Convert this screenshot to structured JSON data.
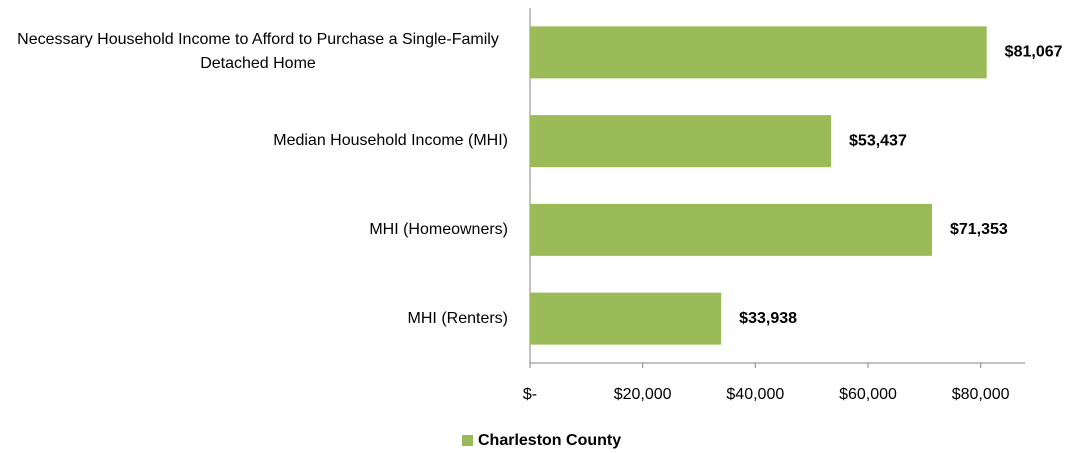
{
  "chart_data": {
    "type": "bar",
    "orientation": "horizontal",
    "categories": [
      "Necessary Household Income to Afford to Purchase a Single-Family Detached Home",
      "Median Household Income (MHI)",
      "MHI (Homeowners)",
      "MHI (Renters)"
    ],
    "series": [
      {
        "name": "Charleston County",
        "color": "#9bbb59",
        "values": [
          81067,
          53437,
          71353,
          33938
        ],
        "value_labels": [
          "$81,067",
          "$53,437",
          "$71,353",
          "$33,938"
        ]
      }
    ],
    "xlim": [
      0,
      90000
    ],
    "xticks": [
      {
        "value": 0,
        "label": "$-"
      },
      {
        "value": 20000,
        "label": "$20,000"
      },
      {
        "value": 40000,
        "label": "$40,000"
      },
      {
        "value": 60000,
        "label": "$60,000"
      },
      {
        "value": 80000,
        "label": "$80,000"
      }
    ],
    "legend": "bottom"
  }
}
